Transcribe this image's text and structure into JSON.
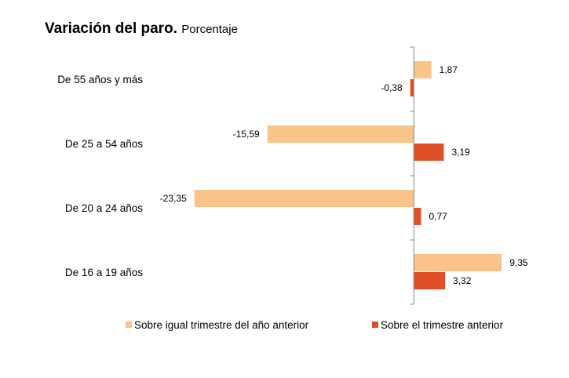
{
  "chart_data": {
    "type": "bar",
    "orientation": "horizontal",
    "title": "Variación del paro.",
    "subtitle": "Porcentaje",
    "categories": [
      "De 55 años y más",
      "De 25 a 54 años",
      "De 20 a 24 años",
      "De 16 a 19 años"
    ],
    "series": [
      {
        "name": "Sobre igual trimestre del año anterior",
        "color": "#F9C38A",
        "values": [
          1.87,
          -15.59,
          -23.35,
          9.35
        ],
        "labels": [
          "1,87",
          "-15,59",
          "-23,35",
          "9,35"
        ]
      },
      {
        "name": "Sobre el trimestre anterior",
        "color": "#E04E27",
        "values": [
          -0.38,
          3.19,
          0.77,
          3.32
        ],
        "labels": [
          "-0,38",
          "3,19",
          "0,77",
          "3,32"
        ]
      }
    ],
    "xlim": [
      -24,
      10
    ],
    "grid": false,
    "legend": "bottom"
  }
}
